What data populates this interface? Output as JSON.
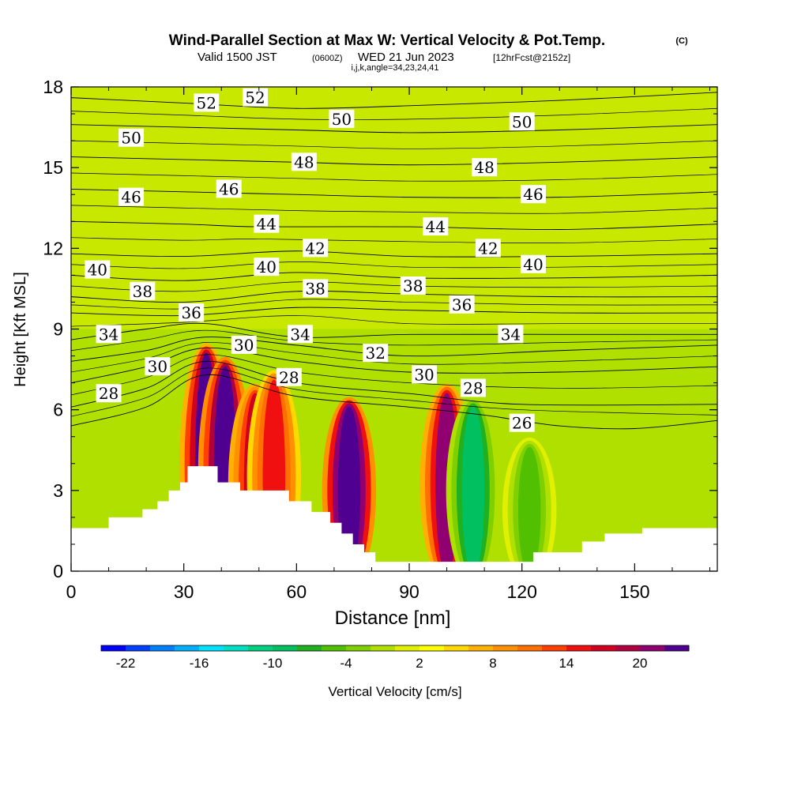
{
  "chart_data": {
    "type": "heatmap",
    "title": "Wind-Parallel Section at Max W: Vertical Velocity & Pot.Temp.",
    "title_mark": "(C)",
    "subtitle_parts": [
      "Valid 1500 JST",
      "(0600Z)",
      "WED 21 Jun 2023",
      "[12hrFcst@2152z]"
    ],
    "subtitle2": "i,j,k,angle=34,23,24,41",
    "xlabel": "Distance [nm]",
    "ylabel": "Height [Kft MSL]",
    "xlim": [
      0,
      172
    ],
    "ylim": [
      0,
      18
    ],
    "x_ticks": [
      0,
      30,
      60,
      90,
      120,
      150
    ],
    "y_ticks": [
      0,
      3,
      6,
      9,
      12,
      15,
      18
    ],
    "colorbar": {
      "label": "Vertical Velocity [cm/s]",
      "tick_labels": [
        "-22",
        "-16",
        "-10",
        "-4",
        "2",
        "8",
        "14",
        "20"
      ],
      "min": -24,
      "max": 24,
      "step": 2,
      "colors": [
        "#0000ff",
        "#0040ff",
        "#0080ff",
        "#00b0ff",
        "#00e0ff",
        "#00e0c0",
        "#00d080",
        "#00c060",
        "#20b020",
        "#50c000",
        "#80d000",
        "#b0e000",
        "#e0f000",
        "#ffff00",
        "#ffd800",
        "#ffb000",
        "#ff9000",
        "#ff7000",
        "#ff4000",
        "#f01010",
        "#d00020",
        "#b00040",
        "#900070",
        "#500090"
      ]
    },
    "vv_levels": {
      "background": 3,
      "bands": [
        {
          "x": 36,
          "top": 8,
          "w": 22
        },
        {
          "x": 41,
          "top": 7.5,
          "w": 24
        },
        {
          "x": 49,
          "top": 6.5,
          "w": 16
        },
        {
          "x": 54,
          "top": 7,
          "w": 14
        },
        {
          "x": 74,
          "top": 6,
          "w": 26
        },
        {
          "x": 100,
          "top": 6.5,
          "w": 20
        },
        {
          "x": 107,
          "top": 6,
          "w": -10
        },
        {
          "x": 122,
          "top": 4.5,
          "w": -5
        }
      ]
    },
    "terrain": [
      [
        0,
        1.6
      ],
      [
        10,
        1.6
      ],
      [
        10,
        2
      ],
      [
        19,
        2
      ],
      [
        19,
        2.3
      ],
      [
        23,
        2.3
      ],
      [
        23,
        2.6
      ],
      [
        26,
        2.6
      ],
      [
        26,
        3
      ],
      [
        29,
        3
      ],
      [
        29,
        3.3
      ],
      [
        31,
        3.3
      ],
      [
        31,
        3.9
      ],
      [
        39,
        3.9
      ],
      [
        39,
        3.3
      ],
      [
        45,
        3.3
      ],
      [
        45,
        3
      ],
      [
        58,
        3
      ],
      [
        58,
        2.6
      ],
      [
        64,
        2.6
      ],
      [
        64,
        2.2
      ],
      [
        69,
        2.2
      ],
      [
        69,
        1.8
      ],
      [
        72,
        1.8
      ],
      [
        72,
        1.4
      ],
      [
        75,
        1.4
      ],
      [
        75,
        1
      ],
      [
        78,
        1
      ],
      [
        78,
        0.7
      ],
      [
        81,
        0.7
      ],
      [
        81,
        0.35
      ],
      [
        123,
        0.35
      ],
      [
        123,
        0.7
      ],
      [
        136,
        0.7
      ],
      [
        136,
        1.1
      ],
      [
        142,
        1.1
      ],
      [
        142,
        1.4
      ],
      [
        152,
        1.4
      ],
      [
        152,
        1.6
      ],
      [
        172,
        1.6
      ]
    ],
    "isentropes": [
      {
        "value": 52,
        "pts": [
          [
            0,
            17.6
          ],
          [
            30,
            17.4
          ],
          [
            60,
            17.2
          ],
          [
            90,
            17.3
          ],
          [
            130,
            17.5
          ],
          [
            172,
            17.8
          ]
        ]
      },
      {
        "value": 50,
        "pts": [
          [
            0,
            16.6
          ],
          [
            30,
            16.5
          ],
          [
            60,
            16.4
          ],
          [
            90,
            16.3
          ],
          [
            130,
            16.4
          ],
          [
            172,
            16.6
          ]
        ]
      },
      {
        "value": 48,
        "pts": [
          [
            0,
            15.4
          ],
          [
            30,
            15.3
          ],
          [
            60,
            15.2
          ],
          [
            90,
            15.1
          ],
          [
            130,
            15.2
          ],
          [
            172,
            15.4
          ]
        ]
      },
      {
        "value": 46,
        "pts": [
          [
            0,
            14.2
          ],
          [
            30,
            14.1
          ],
          [
            60,
            14
          ],
          [
            90,
            13.9
          ],
          [
            130,
            13.9
          ],
          [
            172,
            14.1
          ]
        ]
      },
      {
        "value": 44,
        "pts": [
          [
            0,
            13.0
          ],
          [
            30,
            12.9
          ],
          [
            50,
            12.8
          ],
          [
            90,
            12.8
          ],
          [
            130,
            12.7
          ],
          [
            172,
            12.9
          ]
        ]
      },
      {
        "value": 42,
        "pts": [
          [
            0,
            11.8
          ],
          [
            30,
            11.7
          ],
          [
            60,
            11.9
          ],
          [
            90,
            11.7
          ],
          [
            130,
            11.7
          ],
          [
            172,
            11.8
          ]
        ]
      },
      {
        "value": 40,
        "pts": [
          [
            0,
            11.0
          ],
          [
            30,
            10.8
          ],
          [
            60,
            11.1
          ],
          [
            90,
            10.9
          ],
          [
            130,
            10.9
          ],
          [
            172,
            11.0
          ]
        ]
      },
      {
        "value": 38,
        "pts": [
          [
            0,
            10.2
          ],
          [
            30,
            10.0
          ],
          [
            60,
            10.4
          ],
          [
            90,
            10.3
          ],
          [
            130,
            10.2
          ],
          [
            172,
            10.2
          ]
        ]
      },
      {
        "value": 36,
        "pts": [
          [
            0,
            9.6
          ],
          [
            30,
            9.5
          ],
          [
            60,
            9.8
          ],
          [
            90,
            9.7
          ],
          [
            130,
            9.6
          ],
          [
            172,
            9.6
          ]
        ]
      },
      {
        "value": 34,
        "pts": [
          [
            0,
            8.6
          ],
          [
            20,
            9.0
          ],
          [
            36,
            9.2
          ],
          [
            60,
            8.7
          ],
          [
            90,
            8.8
          ],
          [
            130,
            8.8
          ],
          [
            172,
            8.8
          ]
        ]
      },
      {
        "value": 32,
        "pts": [
          [
            0,
            7.8
          ],
          [
            20,
            8.2
          ],
          [
            36,
            8.7
          ],
          [
            60,
            8.4
          ],
          [
            90,
            8.0
          ],
          [
            130,
            8.2
          ],
          [
            172,
            8.4
          ]
        ]
      },
      {
        "value": 30,
        "pts": [
          [
            0,
            7.0
          ],
          [
            20,
            7.6
          ],
          [
            36,
            8.3
          ],
          [
            60,
            7.8
          ],
          [
            90,
            7.4
          ],
          [
            130,
            7.4
          ],
          [
            172,
            7.6
          ]
        ]
      },
      {
        "value": 28,
        "pts": [
          [
            0,
            6.1
          ],
          [
            20,
            6.8
          ],
          [
            36,
            7.8
          ],
          [
            60,
            7.0
          ],
          [
            90,
            6.6
          ],
          [
            120,
            6.2
          ],
          [
            172,
            6.2
          ]
        ]
      },
      {
        "value": 26,
        "pts": [
          [
            0,
            5.4
          ],
          [
            20,
            6.1
          ],
          [
            36,
            7.3
          ],
          [
            60,
            6.5
          ],
          [
            90,
            6.1
          ],
          [
            110,
            5.8
          ],
          [
            130,
            5.4
          ],
          [
            150,
            5.3
          ],
          [
            172,
            5.6
          ]
        ]
      }
    ],
    "contour_labels": [
      {
        "text": "52",
        "x": 36,
        "y": 17.4
      },
      {
        "text": "52",
        "x": 49,
        "y": 17.6
      },
      {
        "text": "50",
        "x": 16,
        "y": 16.1
      },
      {
        "text": "50",
        "x": 72,
        "y": 16.8
      },
      {
        "text": "50",
        "x": 120,
        "y": 16.7
      },
      {
        "text": "48",
        "x": 62,
        "y": 15.2
      },
      {
        "text": "48",
        "x": 110,
        "y": 15.0
      },
      {
        "text": "46",
        "x": 16,
        "y": 13.9
      },
      {
        "text": "46",
        "x": 42,
        "y": 14.2
      },
      {
        "text": "46",
        "x": 123,
        "y": 14.0
      },
      {
        "text": "44",
        "x": 52,
        "y": 12.9
      },
      {
        "text": "44",
        "x": 97,
        "y": 12.8
      },
      {
        "text": "42",
        "x": 65,
        "y": 12.0
      },
      {
        "text": "42",
        "x": 111,
        "y": 12.0
      },
      {
        "text": "40",
        "x": 7,
        "y": 11.2
      },
      {
        "text": "40",
        "x": 52,
        "y": 11.3
      },
      {
        "text": "40",
        "x": 123,
        "y": 11.4
      },
      {
        "text": "38",
        "x": 19,
        "y": 10.4
      },
      {
        "text": "38",
        "x": 65,
        "y": 10.5
      },
      {
        "text": "38",
        "x": 91,
        "y": 10.6
      },
      {
        "text": "36",
        "x": 32,
        "y": 9.6
      },
      {
        "text": "36",
        "x": 104,
        "y": 9.9
      },
      {
        "text": "34",
        "x": 10,
        "y": 8.8
      },
      {
        "text": "34",
        "x": 61,
        "y": 8.8
      },
      {
        "text": "34",
        "x": 117,
        "y": 8.8
      },
      {
        "text": "32",
        "x": 81,
        "y": 8.1
      },
      {
        "text": "30",
        "x": 23,
        "y": 7.6
      },
      {
        "text": "30",
        "x": 46,
        "y": 8.4
      },
      {
        "text": "30",
        "x": 94,
        "y": 7.3
      },
      {
        "text": "28",
        "x": 10,
        "y": 6.6
      },
      {
        "text": "28",
        "x": 58,
        "y": 7.2
      },
      {
        "text": "28",
        "x": 107,
        "y": 6.8
      },
      {
        "text": "26",
        "x": 120,
        "y": 5.5
      }
    ]
  }
}
